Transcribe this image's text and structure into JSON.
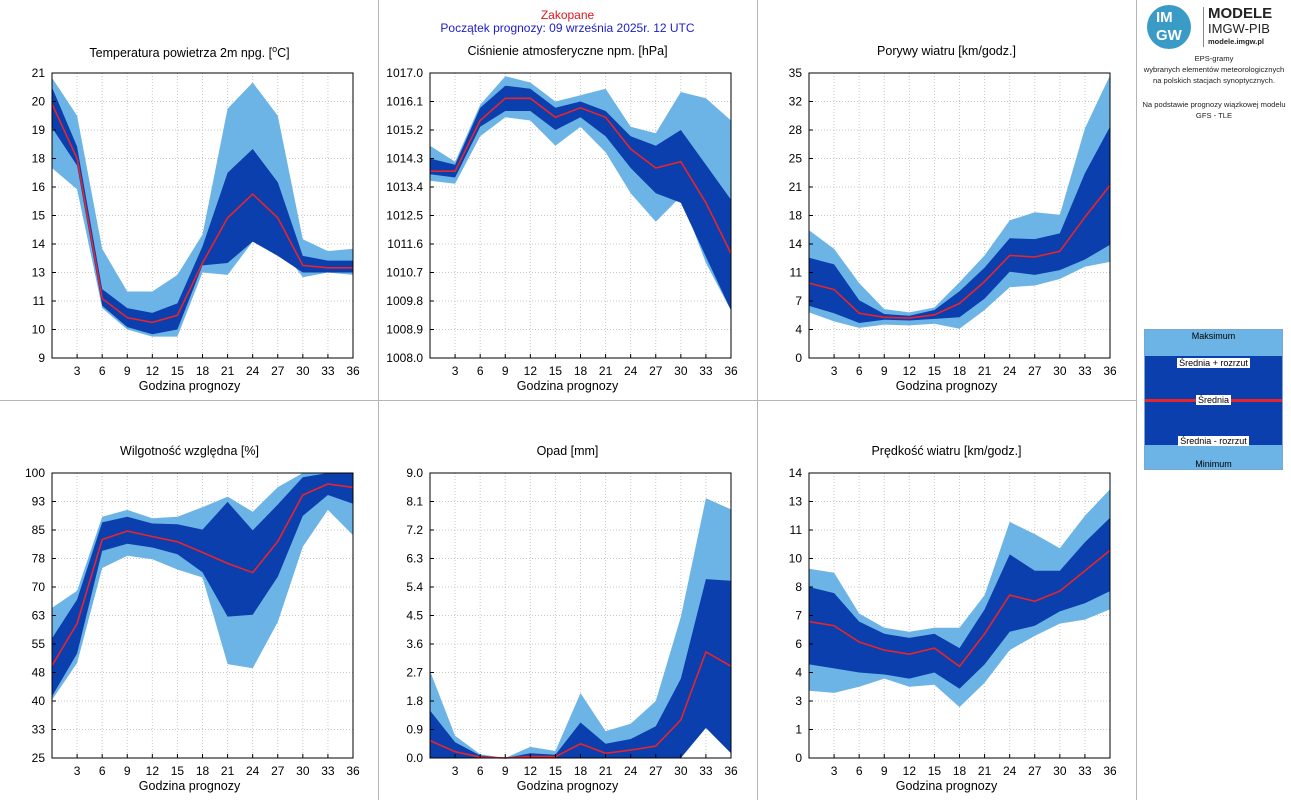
{
  "header": {
    "station": "Zakopane",
    "forecast_start": "Początek prognozy: 09 września 2025r. 12 UTC"
  },
  "sidebar": {
    "logo_line1": "MODELE",
    "logo_line2": "IMGW-PIB",
    "logo_line3": "modele.imgw.pl",
    "logo_badge_top": "IM",
    "logo_badge_bottom": "GW",
    "info_line1": "EPS-gramy",
    "info_line2": "wybranych elementów meteorologicznych",
    "info_line3": "na polskich stacjach  synoptycznych.",
    "info_line4": "Na podstawie prognozy wiązkowej modelu",
    "info_line5": "GFS - TLE",
    "legend": {
      "max": "Maksimum",
      "mean_plus": "Średnia + rozrzut",
      "mean": "Średnia",
      "mean_minus": "Średnia - rozrzut",
      "min": "Minimum"
    }
  },
  "colors": {
    "outer_band": "#6cb4e6",
    "inner_band": "#0a3fad",
    "mean_line": "#e8242c",
    "station_text": "#e0141e",
    "forecast_text": "#1c1ccc"
  },
  "chart_data": [
    {
      "id": "temp",
      "type": "area",
      "title": "Temperatura powietrza 2m npg. [",
      "title_unit_sup": "o",
      "title_unit": "C]",
      "xlabel": "Godzina prognozy",
      "x": [
        0,
        3,
        6,
        9,
        12,
        15,
        18,
        21,
        24,
        27,
        30,
        33,
        36
      ],
      "x_ticks": [
        3,
        6,
        9,
        12,
        15,
        18,
        21,
        24,
        27,
        30,
        33,
        36
      ],
      "ylim": [
        9,
        21
      ],
      "y_ticks": [
        "9",
        "10",
        "11",
        "13",
        "14",
        "15",
        "16",
        "18",
        "19",
        "20",
        "21"
      ],
      "series": {
        "min": [
          17.0,
          16.1,
          11.1,
          10.2,
          9.9,
          9.9,
          12.6,
          12.5,
          13.9,
          13.8,
          12.4,
          12.6,
          12.5
        ],
        "mean_minus": [
          18.7,
          17.1,
          11.2,
          10.3,
          10.0,
          10.2,
          12.9,
          13.0,
          13.9,
          13.3,
          12.6,
          12.6,
          12.6
        ],
        "mean": [
          19.7,
          17.4,
          11.5,
          10.7,
          10.5,
          10.8,
          13.0,
          14.9,
          15.9,
          14.9,
          12.9,
          12.8,
          12.8
        ],
        "mean_plus": [
          20.4,
          17.9,
          11.9,
          11.1,
          10.9,
          11.3,
          13.7,
          16.8,
          17.8,
          16.4,
          13.3,
          13.1,
          13.1
        ],
        "max": [
          20.8,
          19.2,
          13.6,
          11.8,
          11.8,
          12.5,
          14.2,
          19.5,
          20.6,
          19.2,
          14.0,
          13.5,
          13.6
        ]
      }
    },
    {
      "id": "pressure",
      "type": "area",
      "title": "Ciśnienie atmosferyczne npm. [hPa]",
      "xlabel": "Godzina prognozy",
      "x": [
        0,
        3,
        6,
        9,
        12,
        15,
        18,
        21,
        24,
        27,
        30,
        33,
        36
      ],
      "x_ticks": [
        3,
        6,
        9,
        12,
        15,
        18,
        21,
        24,
        27,
        30,
        33,
        36
      ],
      "ylim": [
        1008.0,
        1017.0
      ],
      "y_ticks": [
        "1008.0",
        "1008.9",
        "1009.8",
        "1010.7",
        "1011.6",
        "1012.5",
        "1013.4",
        "1014.3",
        "1015.2",
        "1016.1",
        "1017.0"
      ],
      "series": {
        "min": [
          1013.6,
          1013.5,
          1015.0,
          1015.6,
          1015.5,
          1014.7,
          1015.3,
          1014.5,
          1013.2,
          1012.3,
          1013.1,
          1011.0,
          1009.5
        ],
        "mean_minus": [
          1013.8,
          1013.7,
          1015.3,
          1015.8,
          1015.8,
          1015.2,
          1015.6,
          1015.0,
          1014.0,
          1013.2,
          1012.9,
          1011.2,
          1009.5
        ],
        "mean": [
          1013.9,
          1013.9,
          1015.5,
          1016.2,
          1016.2,
          1015.6,
          1015.9,
          1015.6,
          1014.6,
          1014.0,
          1014.2,
          1012.9,
          1011.3
        ],
        "mean_plus": [
          1014.3,
          1014.1,
          1015.9,
          1016.6,
          1016.5,
          1015.9,
          1016.1,
          1015.8,
          1015.0,
          1014.7,
          1015.2,
          1014.1,
          1013.0
        ],
        "max": [
          1014.7,
          1014.2,
          1016.0,
          1016.9,
          1016.7,
          1016.1,
          1016.3,
          1016.5,
          1015.3,
          1015.1,
          1016.4,
          1016.2,
          1015.5
        ]
      }
    },
    {
      "id": "gusts",
      "type": "area",
      "title": "Porywy wiatru [km/godz.]",
      "xlabel": "Godzina prognozy",
      "x": [
        0,
        3,
        6,
        9,
        12,
        15,
        18,
        21,
        24,
        27,
        30,
        33,
        36
      ],
      "x_ticks": [
        3,
        6,
        9,
        12,
        15,
        18,
        21,
        24,
        27,
        30,
        33,
        36
      ],
      "ylim": [
        0,
        35
      ],
      "y_ticks": [
        "0",
        "4",
        "7",
        "11",
        "14",
        "18",
        "21",
        "25",
        "28",
        "32",
        "35"
      ],
      "series": {
        "min": [
          5.6,
          4.5,
          3.7,
          4.1,
          4.0,
          4.2,
          3.6,
          5.9,
          8.7,
          8.9,
          9.7,
          11.2,
          11.8
        ],
        "mean_minus": [
          6.4,
          5.5,
          4.3,
          4.7,
          4.6,
          4.8,
          5.0,
          7.3,
          10.6,
          10.2,
          10.8,
          12.1,
          13.9
        ],
        "mean": [
          9.2,
          8.4,
          5.5,
          5.0,
          4.9,
          5.3,
          6.7,
          9.4,
          12.6,
          12.4,
          13.1,
          17.3,
          21.2
        ],
        "mean_plus": [
          12.3,
          11.5,
          7.1,
          5.4,
          5.2,
          5.9,
          8.2,
          11.1,
          14.7,
          14.6,
          15.3,
          22.7,
          28.4
        ],
        "max": [
          15.7,
          13.4,
          9.2,
          6.0,
          5.6,
          6.2,
          9.3,
          12.6,
          16.9,
          17.9,
          17.6,
          28.2,
          34.7
        ]
      }
    },
    {
      "id": "humidity",
      "type": "area",
      "title": "Wilgotność względna [%]",
      "xlabel": "Godzina prognozy",
      "x": [
        0,
        3,
        6,
        9,
        12,
        15,
        18,
        21,
        24,
        27,
        30,
        33,
        36
      ],
      "x_ticks": [
        3,
        6,
        9,
        12,
        15,
        18,
        21,
        24,
        27,
        30,
        33,
        36
      ],
      "ylim": [
        25,
        100
      ],
      "y_ticks": [
        "25",
        "33",
        "40",
        "48",
        "55",
        "63",
        "70",
        "78",
        "85",
        "93",
        "100"
      ],
      "series": {
        "min": [
          40.3,
          50.0,
          75.0,
          78.2,
          77.3,
          74.6,
          72.5,
          49.7,
          48.6,
          60.8,
          80.6,
          90.3,
          83.6
        ],
        "mean_minus": [
          41.2,
          52.5,
          79.5,
          81.4,
          80.4,
          78.6,
          73.9,
          62.2,
          62.7,
          72.7,
          88.7,
          94.2,
          91.9
        ],
        "mean": [
          49.3,
          60.4,
          82.5,
          84.7,
          83.3,
          81.9,
          79.1,
          76.2,
          73.8,
          82.0,
          94.2,
          97.1,
          96.2
        ],
        "mean_plus": [
          56.5,
          66.7,
          87.0,
          88.5,
          86.7,
          86.5,
          85.1,
          92.4,
          84.9,
          91.7,
          98.9,
          100.0,
          100.0
        ],
        "max": [
          64.5,
          69.0,
          88.5,
          90.3,
          88.1,
          88.5,
          91.0,
          93.8,
          89.8,
          96.3,
          100.0,
          100.0,
          100.0
        ]
      }
    },
    {
      "id": "precip",
      "type": "area",
      "title": "Opad [mm]",
      "xlabel": "Godzina prognozy",
      "x": [
        0,
        3,
        6,
        9,
        12,
        15,
        18,
        21,
        24,
        27,
        30,
        33,
        36
      ],
      "x_ticks": [
        3,
        6,
        9,
        12,
        15,
        18,
        21,
        24,
        27,
        30,
        33,
        36
      ],
      "ylim": [
        0,
        9
      ],
      "y_ticks": [
        "0.0",
        "0.9",
        "1.8",
        "2.7",
        "3.6",
        "4.5",
        "5.4",
        "6.3",
        "7.2",
        "8.1",
        "9.0"
      ],
      "series": {
        "min": [
          0.0,
          0.0,
          0.0,
          0.0,
          0.0,
          0.0,
          0.0,
          0.0,
          0.0,
          0.0,
          0.0,
          0.95,
          0.15
        ],
        "mean_minus": [
          0.0,
          0.0,
          0.0,
          0.0,
          0.0,
          0.0,
          0.0,
          0.0,
          0.0,
          0.0,
          0.0,
          0.95,
          0.15
        ],
        "mean": [
          0.55,
          0.2,
          0.03,
          0.0,
          0.05,
          0.04,
          0.45,
          0.15,
          0.25,
          0.38,
          1.2,
          3.35,
          2.9
        ],
        "mean_plus": [
          1.5,
          0.5,
          0.08,
          0.0,
          0.15,
          0.1,
          1.12,
          0.45,
          0.6,
          1.0,
          2.5,
          5.65,
          5.6
        ],
        "max": [
          2.75,
          0.7,
          0.12,
          0.0,
          0.35,
          0.22,
          2.05,
          0.85,
          1.08,
          1.8,
          4.45,
          8.2,
          7.85
        ]
      }
    },
    {
      "id": "wind",
      "type": "area",
      "title": "Prędkość wiatru [km/godz.]",
      "xlabel": "Godzina prognozy",
      "x": [
        0,
        3,
        6,
        9,
        12,
        15,
        18,
        21,
        24,
        27,
        30,
        33,
        36
      ],
      "x_ticks": [
        3,
        6,
        9,
        12,
        15,
        18,
        21,
        24,
        27,
        30,
        33,
        36
      ],
      "ylim": [
        0,
        14
      ],
      "y_ticks": [
        "0",
        "1",
        "3",
        "4",
        "6",
        "7",
        "8",
        "10",
        "11",
        "13",
        "14"
      ],
      "series": {
        "min": [
          3.3,
          3.2,
          3.5,
          3.9,
          3.5,
          3.6,
          2.5,
          3.7,
          5.3,
          6.0,
          6.6,
          6.8,
          7.3
        ],
        "mean_minus": [
          4.6,
          4.4,
          4.2,
          4.1,
          3.9,
          4.2,
          3.4,
          4.6,
          6.2,
          6.5,
          7.2,
          7.6,
          8.2
        ],
        "mean": [
          6.7,
          6.5,
          5.7,
          5.3,
          5.1,
          5.4,
          4.5,
          6.1,
          8.0,
          7.7,
          8.2,
          9.2,
          10.2
        ],
        "mean_plus": [
          8.4,
          8.1,
          6.7,
          6.1,
          5.9,
          6.1,
          5.4,
          7.3,
          10.0,
          9.2,
          9.2,
          10.6,
          11.8
        ],
        "max": [
          9.3,
          9.1,
          7.1,
          6.4,
          6.2,
          6.4,
          6.4,
          8.0,
          11.6,
          11.0,
          10.3,
          11.9,
          13.2
        ]
      }
    }
  ]
}
